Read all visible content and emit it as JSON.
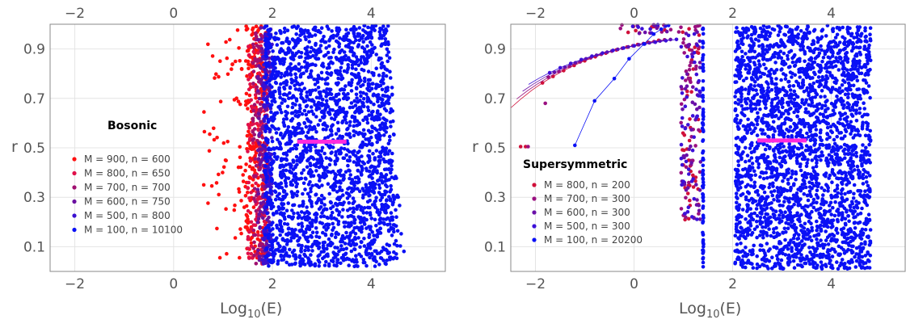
{
  "chart_data": [
    {
      "type": "scatter",
      "title": "Bosonic",
      "xlabel_base": "Log",
      "xlabel_sub": "10",
      "xlabel_tail": "(E)",
      "ylabel": "r",
      "xlim": [
        -2.5,
        5.5
      ],
      "ylim": [
        0,
        1
      ],
      "x_ticks": [
        -2,
        0,
        2,
        4
      ],
      "y_ticks": [
        0.1,
        0.3,
        0.5,
        0.7,
        0.9
      ],
      "x_tick_labels": [
        "−2",
        "0",
        "2",
        "4"
      ],
      "y_tick_labels": [
        "0.1",
        "0.3",
        "0.5",
        "0.7",
        "0.9"
      ],
      "grid": true,
      "legend_position": "lower-left",
      "reference_segment": {
        "x": [
          2.5,
          3.5
        ],
        "y": 0.525,
        "color": "#ff2bdc"
      },
      "series": [
        {
          "name": "M = 900, n = 600",
          "color": "#ff1010",
          "x_range": [
            0.6,
            1.9
          ]
        },
        {
          "name": "M = 800, n = 650",
          "color": "#e0104a",
          "x_range": [
            1.3,
            1.9
          ]
        },
        {
          "name": "M = 700, n = 700",
          "color": "#a01070",
          "x_range": [
            1.4,
            1.9
          ]
        },
        {
          "name": "M = 600, n = 750",
          "color": "#6a10a0",
          "x_range": [
            1.5,
            1.95
          ]
        },
        {
          "name": "M = 500, n = 800",
          "color": "#3a10d0",
          "x_range": [
            1.6,
            2.0
          ]
        },
        {
          "name": "M = 100, n = 10100",
          "color": "#0a10f5",
          "x_range": [
            1.8,
            4.7
          ]
        }
      ]
    },
    {
      "type": "scatter",
      "title": "Supersymmetric",
      "xlabel_base": "Log",
      "xlabel_sub": "10",
      "xlabel_tail": "(E)",
      "ylabel": "r",
      "xlim": [
        -2.5,
        5.5
      ],
      "ylim": [
        0,
        1
      ],
      "x_ticks": [
        -2,
        0,
        2,
        4
      ],
      "y_ticks": [
        0.1,
        0.3,
        0.5,
        0.7,
        0.9
      ],
      "x_tick_labels": [
        "−2",
        "0",
        "2",
        "4"
      ],
      "y_tick_labels": [
        "0.1",
        "0.3",
        "0.5",
        "0.7",
        "0.9"
      ],
      "grid": true,
      "legend_position": "lower-left",
      "reference_segment": {
        "x": [
          2.5,
          3.5
        ],
        "y": 0.53,
        "color": "#ff2bdc"
      },
      "series": [
        {
          "name": "M = 800, n = 200",
          "color": "#d0103a",
          "x_range": [
            -2.3,
            1.4
          ]
        },
        {
          "name": "M = 700, n = 300",
          "color": "#9a1080",
          "x_range": [
            -1.8,
            1.4
          ]
        },
        {
          "name": "M = 600, n = 300",
          "color": "#6a10a8",
          "x_range": [
            -1.8,
            1.4
          ]
        },
        {
          "name": "M = 500, n = 300",
          "color": "#3c10d8",
          "x_range": [
            -1.7,
            1.4
          ]
        },
        {
          "name": "M = 100, n = 20200",
          "color": "#0a10f5",
          "x_range": [
            -1.2,
            4.9
          ]
        }
      ]
    }
  ]
}
